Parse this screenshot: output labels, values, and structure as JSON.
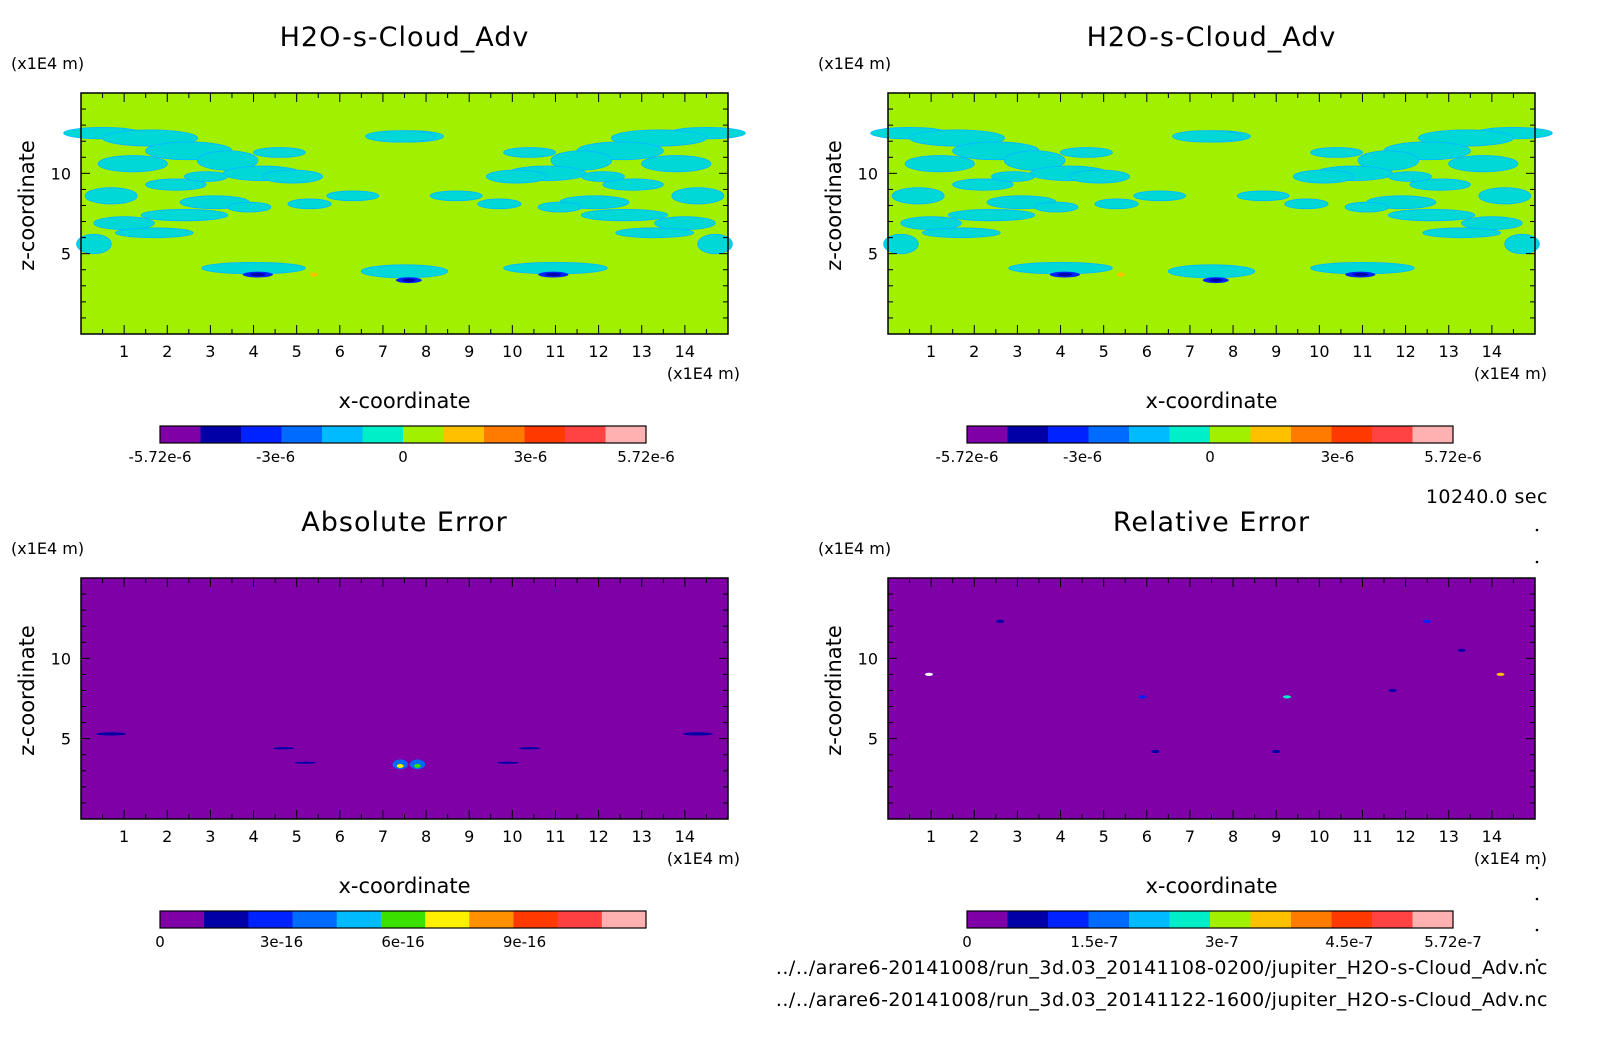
{
  "time_label": "10240.0 sec",
  "file_paths": [
    "../../arare6-20141008/run_3d.03_20141108-0200/jupiter_H2O-s-Cloud_Adv.nc",
    "../../arare6-20141008/run_3d.03_20141122-1600/jupiter_H2O-s-Cloud_Adv.nc"
  ],
  "colors": {
    "background_field": "#a0f000",
    "error_background": "#7f00a6",
    "cloud_patch": "#00d8d8"
  },
  "chart_data": [
    {
      "type": "heatmap",
      "title": "H2O-s-Cloud_Adv",
      "xlabel": "x-coordinate",
      "ylabel": "z-coordinate",
      "x_unit": "(x1E4 m)",
      "y_unit": "(x1E4 m)",
      "xlim": [
        0,
        15
      ],
      "ylim": [
        0,
        15
      ],
      "xticks": [
        1,
        2,
        3,
        4,
        5,
        6,
        7,
        8,
        9,
        10,
        11,
        12,
        13,
        14
      ],
      "yticks": [
        5,
        10
      ],
      "field": "cloud",
      "colorbar": {
        "colors": [
          "#7f00a6",
          "#0000a6",
          "#0022ff",
          "#006cff",
          "#00bbff",
          "#00eec8",
          "#a0f000",
          "#ffc000",
          "#ff7c00",
          "#ff3a00",
          "#ff4242",
          "#ffb0b0"
        ],
        "tick_values": [
          -5.72e-06,
          -3e-06,
          0,
          3e-06,
          5.72e-06
        ],
        "tick_labels": [
          "-5.72e-6",
          "-3e-6",
          "0",
          "3e-6",
          "5.72e-6"
        ],
        "range": [
          -5.72e-06,
          5.72e-06
        ]
      }
    },
    {
      "type": "heatmap",
      "title": "H2O-s-Cloud_Adv",
      "xlabel": "x-coordinate",
      "ylabel": "z-coordinate",
      "x_unit": "(x1E4 m)",
      "y_unit": "(x1E4 m)",
      "xlim": [
        0,
        15
      ],
      "ylim": [
        0,
        15
      ],
      "xticks": [
        1,
        2,
        3,
        4,
        5,
        6,
        7,
        8,
        9,
        10,
        11,
        12,
        13,
        14
      ],
      "yticks": [
        5,
        10
      ],
      "field": "cloud",
      "colorbar": {
        "colors": [
          "#7f00a6",
          "#0000a6",
          "#0022ff",
          "#006cff",
          "#00bbff",
          "#00eec8",
          "#a0f000",
          "#ffc000",
          "#ff7c00",
          "#ff3a00",
          "#ff4242",
          "#ffb0b0"
        ],
        "tick_values": [
          -5.72e-06,
          -3e-06,
          0,
          3e-06,
          5.72e-06
        ],
        "tick_labels": [
          "-5.72e-6",
          "-3e-6",
          "0",
          "3e-6",
          "5.72e-6"
        ],
        "range": [
          -5.72e-06,
          5.72e-06
        ]
      }
    },
    {
      "type": "heatmap",
      "title": "Absolute Error",
      "xlabel": "x-coordinate",
      "ylabel": "z-coordinate",
      "x_unit": "(x1E4 m)",
      "y_unit": "(x1E4 m)",
      "xlim": [
        0,
        15
      ],
      "ylim": [
        0,
        15
      ],
      "xticks": [
        1,
        2,
        3,
        4,
        5,
        6,
        7,
        8,
        9,
        10,
        11,
        12,
        13,
        14
      ],
      "yticks": [
        5,
        10
      ],
      "field": "abs_error",
      "colorbar": {
        "colors": [
          "#7f00a6",
          "#0000a6",
          "#0022ff",
          "#006cff",
          "#00bbff",
          "#3ae000",
          "#fff000",
          "#ff9000",
          "#ff3a00",
          "#ff4040",
          "#ffb0b0"
        ],
        "tick_values": [
          0,
          3e-16,
          6e-16,
          9e-16
        ],
        "tick_labels": [
          "0",
          "3e-16",
          "6e-16",
          "9e-16"
        ],
        "range": [
          0,
          1.2e-15
        ]
      }
    },
    {
      "type": "heatmap",
      "title": "Relative Error",
      "xlabel": "x-coordinate",
      "ylabel": "z-coordinate",
      "x_unit": "(x1E4 m)",
      "y_unit": "(x1E4 m)",
      "xlim": [
        0,
        15
      ],
      "ylim": [
        0,
        15
      ],
      "xticks": [
        1,
        2,
        3,
        4,
        5,
        6,
        7,
        8,
        9,
        10,
        11,
        12,
        13,
        14
      ],
      "yticks": [
        5,
        10
      ],
      "field": "rel_error",
      "colorbar": {
        "colors": [
          "#7f00a6",
          "#0000a6",
          "#0022ff",
          "#006cff",
          "#00bbff",
          "#00eec8",
          "#a0f000",
          "#ffc000",
          "#ff7c00",
          "#ff3a00",
          "#ff4242",
          "#ffb0b0"
        ],
        "tick_values": [
          0,
          1.5e-07,
          3e-07,
          4.5e-07,
          5.72e-07
        ],
        "tick_labels": [
          "0",
          "1.5e-7",
          "3e-7",
          "4.5e-7",
          "5.72e-7"
        ],
        "range": [
          0,
          5.72e-07
        ]
      }
    }
  ]
}
